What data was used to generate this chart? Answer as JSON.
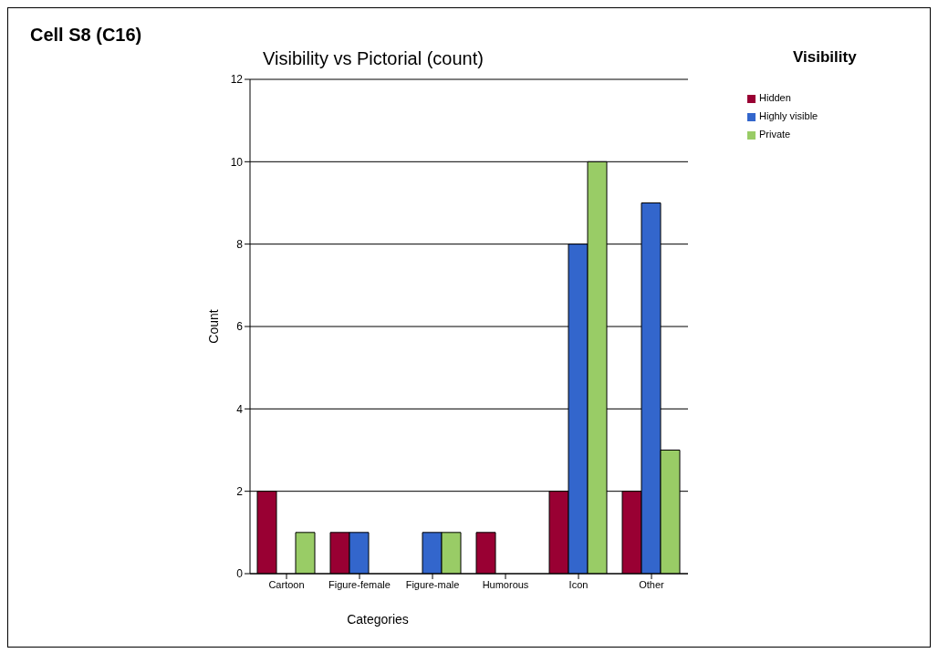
{
  "chart_data": {
    "type": "bar",
    "title": "Visibility vs Pictorial (count)",
    "annotations": [
      "Cell  S8 (C16)"
    ],
    "xlabel": "Categories",
    "ylabel": "Count",
    "legend_title": "Visibility",
    "categories": [
      "Cartoon",
      "Figure-female",
      "Figure-male",
      "Humorous",
      "Icon",
      "Other"
    ],
    "series": [
      {
        "name": "Hidden",
        "color": "#990033",
        "values": [
          2,
          1,
          null,
          1,
          2,
          2
        ]
      },
      {
        "name": "Highly visible",
        "color": "#3366cc",
        "values": [
          null,
          1,
          1,
          null,
          8,
          9
        ]
      },
      {
        "name": "Private",
        "color": "#99cc66",
        "values": [
          1,
          null,
          1,
          null,
          10,
          3
        ]
      }
    ],
    "ylim": [
      0,
      12
    ],
    "yticks": [
      0,
      2,
      4,
      6,
      8,
      10,
      12
    ],
    "grid": "y",
    "legend": "top right"
  }
}
